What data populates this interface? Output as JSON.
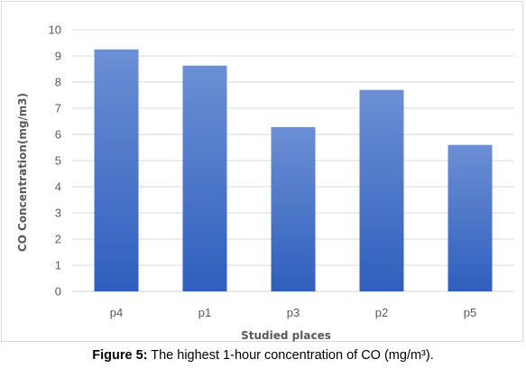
{
  "caption": {
    "lead": "Figure 5:",
    "text": " The highest 1-hour concentration of CO (mg/m³)."
  },
  "chart_data": {
    "type": "bar",
    "categories": [
      "p4",
      "p1",
      "p3",
      "p2",
      "p5"
    ],
    "values": [
      9.25,
      8.63,
      6.28,
      7.7,
      5.6
    ],
    "title": "",
    "xlabel": "Studied places",
    "ylabel": "CO Concentration(mg/m3)",
    "ylim": [
      0,
      10
    ],
    "yticks": [
      "0",
      "1",
      "2",
      "3",
      "4",
      "5",
      "6",
      "7",
      "8",
      "9",
      "10"
    ],
    "grid": true,
    "legend": "none",
    "colors": {
      "bar_top": "#6c8fd4",
      "bar_bottom": "#2f5fbd",
      "grid": "#d9d9d9",
      "text": "#595959"
    }
  }
}
